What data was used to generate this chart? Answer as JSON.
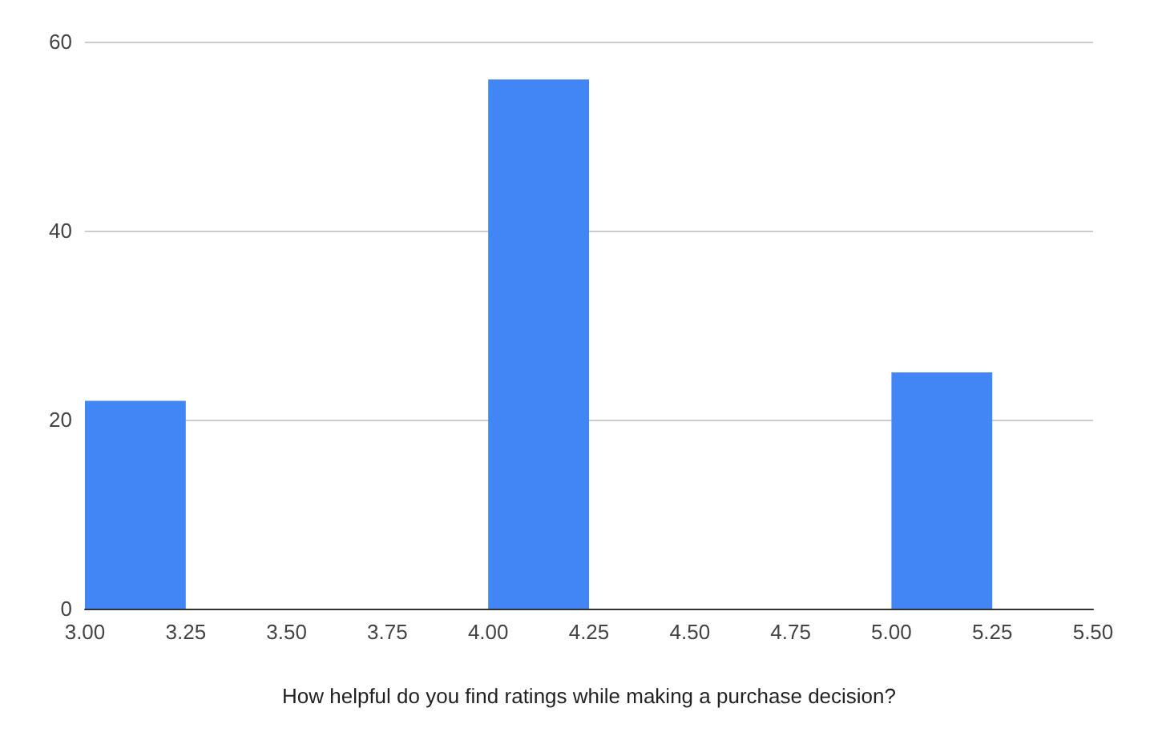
{
  "chart_data": {
    "type": "histogram",
    "xlabel": "How helpful do you find ratings while making a purchase decision?",
    "bins": [
      3,
      3.25,
      3.5,
      3.75,
      4,
      4.25,
      4.5,
      4.75,
      5,
      5.25,
      5.5
    ],
    "values": [
      22,
      0,
      0,
      0,
      56,
      0,
      0,
      0,
      25,
      0
    ],
    "color": "#4285f4",
    "xlim": [
      3,
      5.5
    ],
    "xticks": [
      {
        "value": 3,
        "label": "3.00"
      },
      {
        "value": 3.25,
        "label": "3.25"
      },
      {
        "value": 3.5,
        "label": "3.50"
      },
      {
        "value": 3.75,
        "label": "3.75"
      },
      {
        "value": 4,
        "label": "4.00"
      },
      {
        "value": 4.25,
        "label": "4.25"
      },
      {
        "value": 4.5,
        "label": "4.50"
      },
      {
        "value": 4.75,
        "label": "4.75"
      },
      {
        "value": 5,
        "label": "5.00"
      },
      {
        "value": 5.25,
        "label": "5.25"
      },
      {
        "value": 5.5,
        "label": "5.50"
      }
    ],
    "ylim": [
      0,
      60
    ],
    "yticks": [
      0,
      20,
      40,
      60
    ],
    "grid": "y"
  }
}
